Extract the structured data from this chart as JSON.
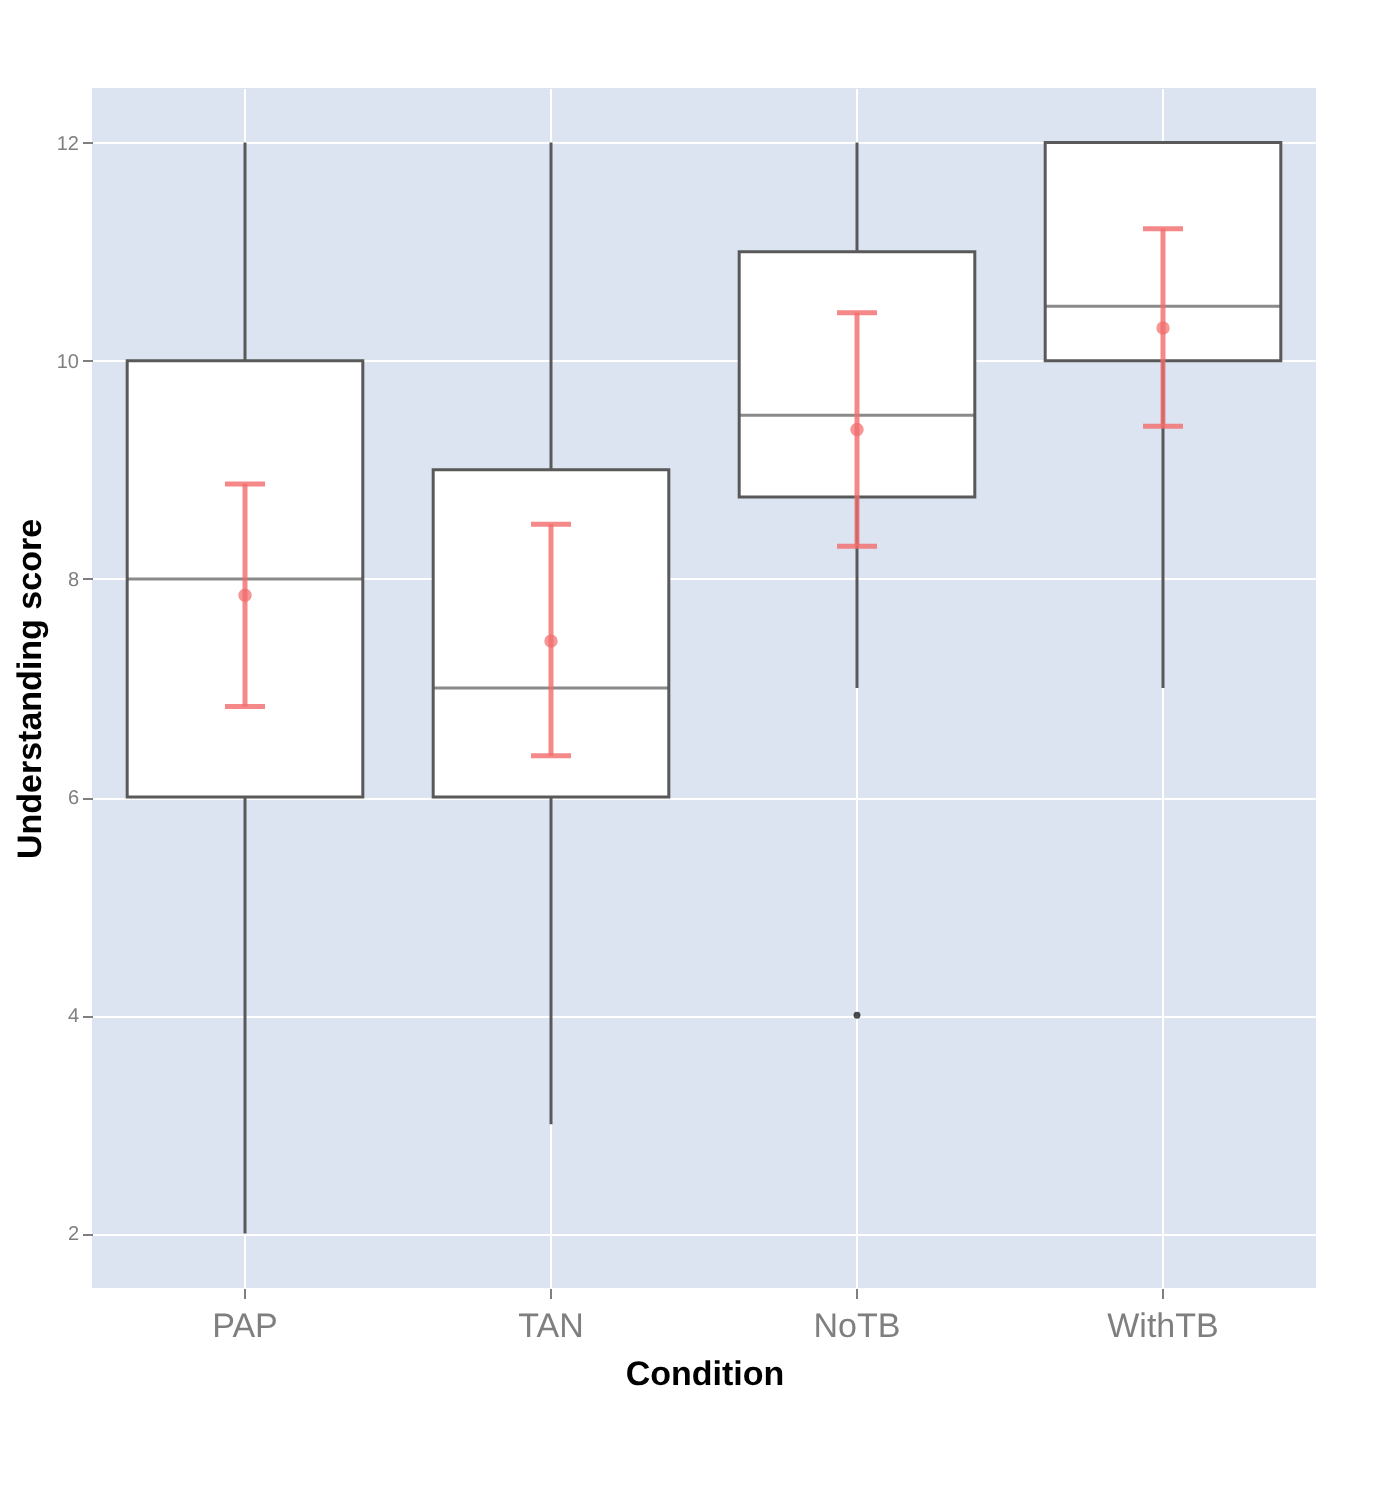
{
  "chart_data": {
    "type": "box",
    "xlabel": "Condition",
    "ylabel": "Understanding score",
    "categories": [
      "PAP",
      "TAN",
      "NoTB",
      "WithTB"
    ],
    "boxes": [
      {
        "low": 2,
        "q1": 6,
        "median": 8,
        "q3": 10,
        "high": 12
      },
      {
        "low": 3,
        "q1": 6,
        "median": 7,
        "q3": 9,
        "high": 12
      },
      {
        "low": 7,
        "q1": 8.75,
        "median": 9.5,
        "q3": 11,
        "high": 12,
        "outliers": [
          4
        ]
      },
      {
        "low": 7,
        "q1": 10,
        "median": 10.5,
        "q3": 12,
        "high": 12
      }
    ],
    "series": [
      {
        "type": "scatter",
        "color": "#f26b6b",
        "marker": "circle",
        "x": [
          "PAP",
          "TAN",
          "NoTB",
          "WithTB"
        ],
        "values": [
          7.85,
          7.43,
          9.37,
          10.3
        ],
        "errors": [
          [
            6.83,
            8.87
          ],
          [
            6.38,
            8.5
          ],
          [
            8.3,
            10.44
          ],
          [
            9.4,
            11.21
          ]
        ]
      }
    ],
    "ylim": [
      1.5,
      12.5
    ],
    "yticks": [
      2,
      4,
      6,
      8,
      10,
      12
    ],
    "grid": true
  }
}
